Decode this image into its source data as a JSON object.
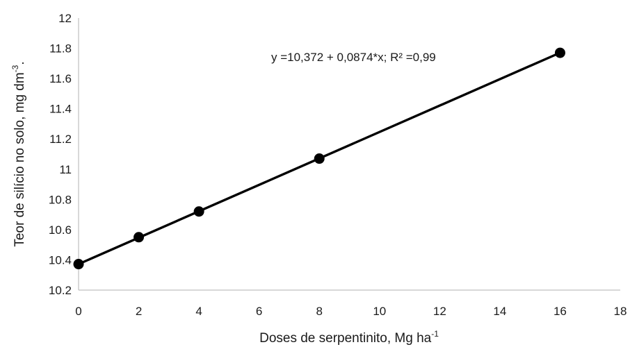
{
  "chart_data": {
    "type": "scatter",
    "title": "",
    "xlabel": {
      "main": "Doses de serpentinito, Mg ha",
      "sup": "-1"
    },
    "ylabel": {
      "main": "Teor de silício no solo, mg dm",
      "sup": "-3",
      "suffix": "."
    },
    "xlim": [
      0,
      18
    ],
    "ylim": [
      10.2,
      12
    ],
    "x_ticks": [
      "0",
      "2",
      "4",
      "6",
      "8",
      "10",
      "12",
      "14",
      "16",
      "18"
    ],
    "y_ticks": [
      "10.2",
      "10.4",
      "10.6",
      "10.8",
      "11",
      "11.2",
      "11.4",
      "11.6",
      "11.8",
      "12"
    ],
    "grid": false,
    "series": [
      {
        "x": [
          0,
          2,
          4,
          8,
          16
        ],
        "y": [
          10.372,
          10.55,
          10.72,
          11.07,
          11.77
        ],
        "marker": "circle",
        "color": "#000000"
      }
    ],
    "trendline": {
      "type": "linear",
      "intercept": 10.372,
      "slope": 0.0874,
      "x_range": [
        0,
        16
      ],
      "color": "#000000"
    },
    "annotations": [
      {
        "text": "y =10,372 + 0,0874*x; R² =0,99"
      }
    ],
    "colors": {
      "axis": "#bfbfbf",
      "text": "#1a1a1a",
      "series": "#000000"
    }
  }
}
